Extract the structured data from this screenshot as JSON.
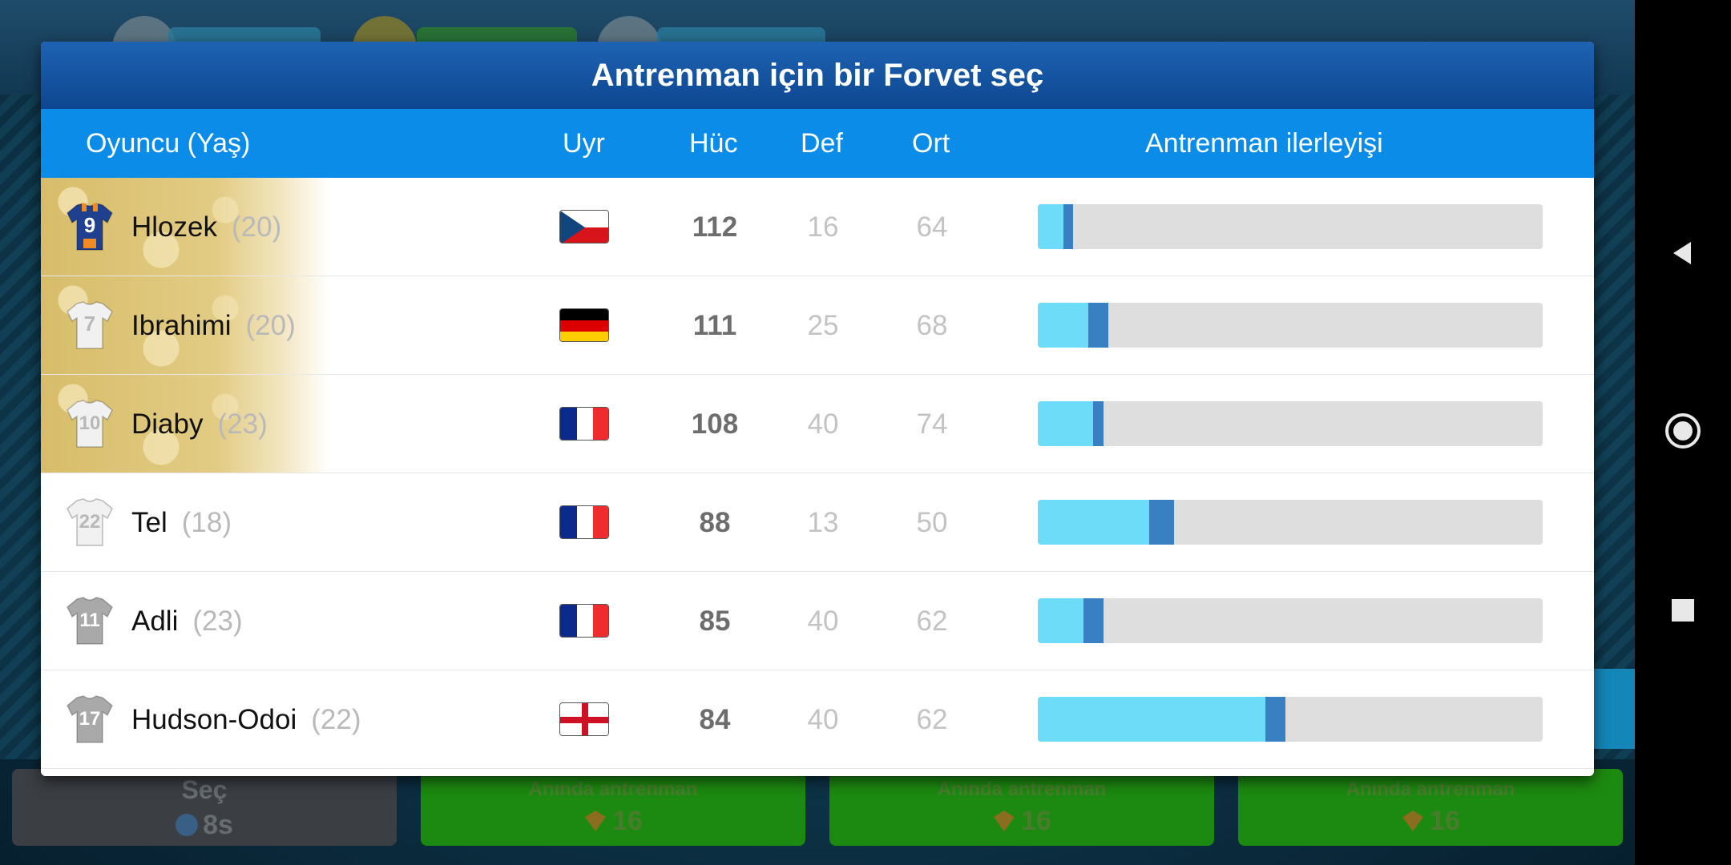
{
  "modal": {
    "title": "Antrenman için bir Forvet seç",
    "columns": {
      "player": "Oyuncu (Yaş)",
      "nationality": "Uyr",
      "attack": "Hüc",
      "defense": "Def",
      "midfield": "Ort",
      "progress": "Antrenman ilerleyişi"
    },
    "players": [
      {
        "number": "9",
        "name": "Hlozek",
        "age": "(20)",
        "flag": "cz",
        "attack": "112",
        "defense": "16",
        "midfield": "64",
        "favorite": true,
        "jersey": "blue",
        "progress": 0.05,
        "progress_gain": 0.02
      },
      {
        "number": "7",
        "name": "Ibrahimi",
        "age": "(20)",
        "flag": "de",
        "attack": "111",
        "defense": "25",
        "midfield": "68",
        "favorite": true,
        "jersey": "white",
        "progress": 0.1,
        "progress_gain": 0.04
      },
      {
        "number": "10",
        "name": "Diaby",
        "age": "(23)",
        "flag": "fr",
        "attack": "108",
        "defense": "40",
        "midfield": "74",
        "favorite": true,
        "jersey": "white",
        "progress": 0.11,
        "progress_gain": 0.02
      },
      {
        "number": "22",
        "name": "Tel",
        "age": "(18)",
        "flag": "fr",
        "attack": "88",
        "defense": "13",
        "midfield": "50",
        "favorite": false,
        "jersey": "white",
        "progress": 0.22,
        "progress_gain": 0.05
      },
      {
        "number": "11",
        "name": "Adli",
        "age": "(23)",
        "flag": "fr",
        "attack": "85",
        "defense": "40",
        "midfield": "62",
        "favorite": false,
        "jersey": "grey",
        "progress": 0.09,
        "progress_gain": 0.04
      },
      {
        "number": "17",
        "name": "Hudson-Odoi",
        "age": "(22)",
        "flag": "en",
        "attack": "84",
        "defense": "40",
        "midfield": "62",
        "favorite": false,
        "jersey": "grey",
        "progress": 0.45,
        "progress_gain": 0.04
      }
    ]
  },
  "bottom_bar": {
    "select": {
      "label": "Seç",
      "timer": "8s"
    },
    "train_buttons": [
      {
        "label": "Anında antrenman",
        "cost": "16"
      },
      {
        "label": "Anında antrenman",
        "cost": "16"
      },
      {
        "label": "Anında antrenman",
        "cost": "16"
      }
    ]
  },
  "icons": {
    "nav_back": "triangle-back-icon",
    "nav_home": "circle-home-icon",
    "nav_recents": "square-recents-icon",
    "currency": "token-icon",
    "timer": "clock-icon"
  },
  "colors": {
    "title_bar": "#0d4690",
    "header_bar": "#0a8ce8",
    "progress_fill": "#6ddcf8",
    "progress_gain": "#3880c2",
    "progress_track": "#dedede",
    "favorite_gold": "#d7bd6a",
    "train_button": "#1c8a10"
  }
}
